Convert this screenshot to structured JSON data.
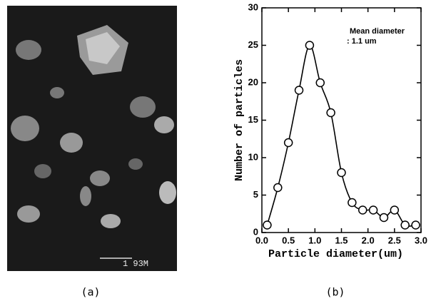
{
  "panels": {
    "a": "(a)",
    "b": "(b)"
  },
  "image": {
    "scale_bar_label": "1 93M"
  },
  "chart_data": {
    "type": "line",
    "x_label": "Particle diameter(um)",
    "y_label": "Number of particles",
    "annotation": [
      "Mean diameter",
      ": 1.1 um"
    ],
    "x": [
      0.1,
      0.3,
      0.5,
      0.7,
      0.9,
      1.1,
      1.3,
      1.5,
      1.7,
      1.9,
      2.1,
      2.3,
      2.5,
      2.7,
      2.9
    ],
    "values": [
      1,
      6,
      12,
      19,
      25,
      20,
      16,
      8,
      4,
      3,
      3,
      2,
      3,
      1,
      1
    ],
    "color": "#000000",
    "marker": "open-circle",
    "smooth": true,
    "xlim": [
      0,
      3
    ],
    "ylim": [
      0,
      30
    ],
    "xticks": [
      {
        "value": 0,
        "label": "0.0"
      },
      0.5,
      {
        "value": 1,
        "label": "1.0"
      },
      1.5,
      {
        "value": 2,
        "label": "2.0"
      },
      2.5,
      {
        "value": 3,
        "label": "3.0"
      }
    ],
    "yticks": [
      0,
      5,
      10,
      15,
      20,
      25,
      30
    ]
  }
}
